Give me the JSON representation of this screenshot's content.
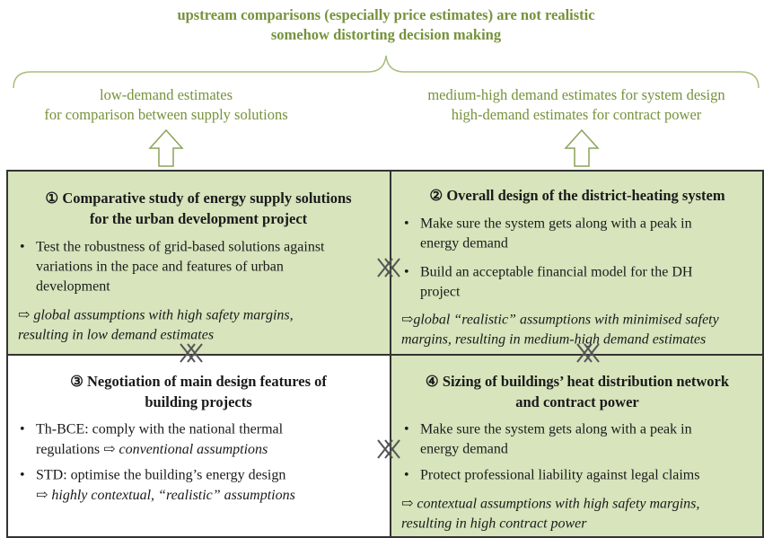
{
  "header": {
    "lines": [
      "upstream comparisons (especially price estimates) are not realistic",
      "somehow distorting decision making"
    ]
  },
  "left_label": {
    "lines": [
      "low-demand estimates",
      "for comparison between supply solutions"
    ]
  },
  "right_label": {
    "lines": [
      "medium-high demand estimates for system design",
      "high-demand estimates for contract power"
    ]
  },
  "quadrants": [
    {
      "title": [
        "① Comparative study of energy supply solutions",
        "for the urban development project"
      ],
      "bullets": [
        [
          "Test the robustness of grid-based solutions against",
          "variations in the pace and features of urban",
          "development"
        ]
      ],
      "conclusion": [
        "⇨ global assumptions with high safety margins,",
        "resulting in  low demand estimates"
      ]
    },
    {
      "title": [
        "② Overall design of the district-heating system"
      ],
      "bullets": [
        [
          "Make sure the system gets along with a peak in",
          "energy demand"
        ],
        [
          "Build an acceptable financial model for the DH",
          "project"
        ]
      ],
      "conclusion": [
        "⇨global “realistic” assumptions with minimised safety",
        "margins, resulting in medium-high demand estimates"
      ]
    },
    {
      "title": [
        "③ Negotiation of main design features of",
        "building projects"
      ],
      "bullets": [
        [
          {
            "text": "Th-BCE: comply with the national thermal"
          },
          {
            "parts": [
              {
                "text": "regulations ⇨ "
              },
              {
                "text": "conventional assumptions",
                "italic": true
              }
            ]
          }
        ],
        [
          {
            "text": "STD: optimise the building’s energy design"
          },
          {
            "parts": [
              {
                "text": "⇨ "
              },
              {
                "text": "highly contextual, “realistic” assumptions",
                "italic": true
              }
            ]
          }
        ]
      ],
      "conclusion": []
    },
    {
      "title": [
        "④ Sizing of buildings’ heat distribution network",
        "and contract power"
      ],
      "bullets": [
        [
          "Make sure the system gets along with a peak in",
          "energy demand"
        ],
        [
          "Protect professional liability against legal claims"
        ]
      ],
      "conclusion": [
        "⇨ contextual assumptions with high safety margins,",
        "resulting in high contract power"
      ]
    }
  ]
}
